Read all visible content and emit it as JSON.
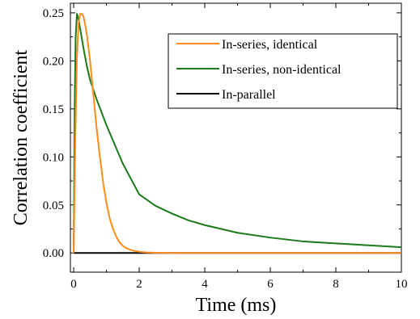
{
  "chart_data": {
    "type": "line",
    "title": "",
    "xlabel": "Time (ms)",
    "ylabel": "Correlation coefficient",
    "xlim": [
      -0.1,
      10
    ],
    "ylim": [
      -0.02,
      0.26
    ],
    "xticks": [
      0,
      2,
      4,
      6,
      8,
      10
    ],
    "xtick_labels": [
      "0",
      "2",
      "4",
      "6",
      "8",
      "10"
    ],
    "yticks": [
      0.0,
      0.05,
      0.1,
      0.15,
      0.2,
      0.25
    ],
    "ytick_labels": [
      "0.00",
      "0.05",
      "0.10",
      "0.15",
      "0.20",
      "0.25"
    ],
    "grid": false,
    "legend_position": "top-right",
    "series": [
      {
        "name": "In-series, identical",
        "color": "#ff8c1a",
        "x": [
          0.0,
          0.05,
          0.1,
          0.15,
          0.2,
          0.25,
          0.3,
          0.35,
          0.4,
          0.5,
          0.6,
          0.7,
          0.8,
          0.9,
          1.0,
          1.1,
          1.2,
          1.3,
          1.4,
          1.5,
          1.6,
          1.8,
          2.0,
          2.2,
          2.5,
          3.0,
          10.0
        ],
        "y": [
          0.0,
          0.12,
          0.205,
          0.24,
          0.249,
          0.249,
          0.246,
          0.238,
          0.228,
          0.2,
          0.165,
          0.13,
          0.1,
          0.073,
          0.052,
          0.036,
          0.025,
          0.017,
          0.011,
          0.0075,
          0.005,
          0.0025,
          0.0012,
          0.0006,
          0.0002,
          0.0,
          0.0
        ]
      },
      {
        "name": "In-series, non-identical",
        "color": "#1a7a1a",
        "x": [
          0.0,
          0.03,
          0.06,
          0.1,
          0.15,
          0.2,
          0.3,
          0.4,
          0.5,
          0.7,
          1.0,
          1.5,
          2.0,
          2.5,
          3.0,
          3.5,
          4.0,
          5.0,
          6.0,
          7.0,
          8.0,
          9.0,
          10.0
        ],
        "y": [
          0.0,
          0.15,
          0.225,
          0.249,
          0.243,
          0.233,
          0.213,
          0.195,
          0.18,
          0.16,
          0.133,
          0.093,
          0.061,
          0.049,
          0.041,
          0.034,
          0.029,
          0.021,
          0.016,
          0.012,
          0.01,
          0.008,
          0.006
        ]
      },
      {
        "name": "In-parallel",
        "color": "#000000",
        "x": [
          0.0,
          10.0
        ],
        "y": [
          0.0,
          0.0
        ]
      }
    ]
  }
}
